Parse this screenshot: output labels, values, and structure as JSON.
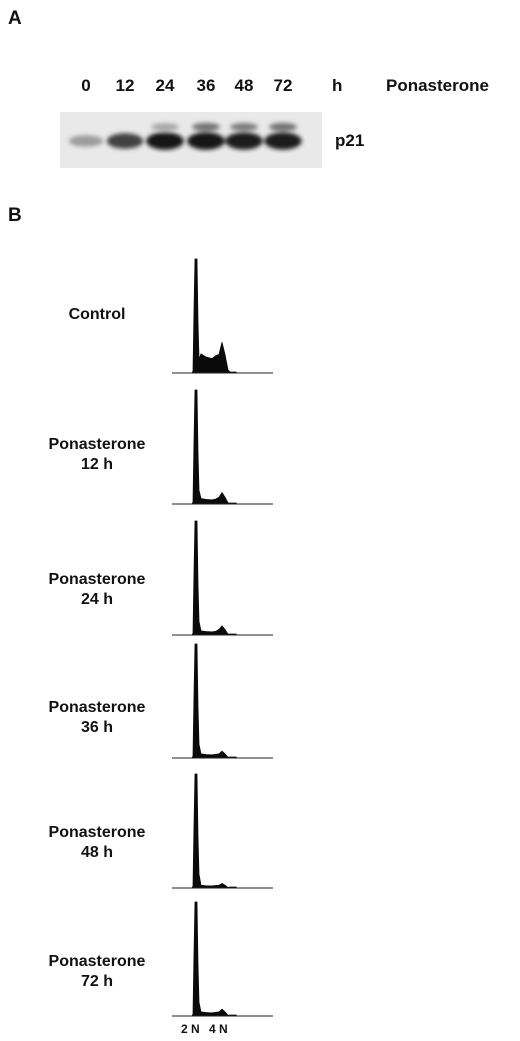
{
  "panel_a": {
    "label": "A",
    "timepoints": [
      "0",
      "12",
      "24",
      "36",
      "48",
      "72"
    ],
    "unit": "h",
    "treatment": "Ponasterone",
    "protein": "p21",
    "band_intensity": [
      0.35,
      0.75,
      0.95,
      0.95,
      0.92,
      0.92
    ],
    "upper_band_intensity": [
      0,
      0,
      0.35,
      0.6,
      0.55,
      0.6
    ]
  },
  "panel_b": {
    "label": "B",
    "histograms": [
      {
        "line1": "Control",
        "line2": "",
        "g1_peak": 1.0,
        "s_phase": 0.14,
        "g2_peak": 0.27
      },
      {
        "line1": "Ponasterone",
        "line2": "12 h",
        "g1_peak": 1.0,
        "s_phase": 0.04,
        "g2_peak": 0.1
      },
      {
        "line1": "Ponasterone",
        "line2": "24 h",
        "g1_peak": 1.0,
        "s_phase": 0.03,
        "g2_peak": 0.08
      },
      {
        "line1": "Ponasterone",
        "line2": "36 h",
        "g1_peak": 1.0,
        "s_phase": 0.03,
        "g2_peak": 0.06
      },
      {
        "line1": "Ponasterone",
        "line2": "48 h",
        "g1_peak": 1.0,
        "s_phase": 0.02,
        "g2_peak": 0.04
      },
      {
        "line1": "Ponasterone",
        "line2": "72 h",
        "g1_peak": 1.0,
        "s_phase": 0.03,
        "g2_peak": 0.06
      }
    ],
    "x_ticks": [
      "2 N",
      "4 N"
    ]
  }
}
